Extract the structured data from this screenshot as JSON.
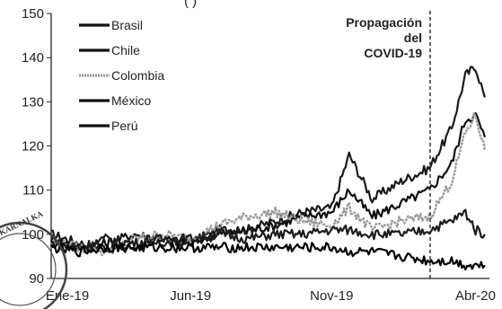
{
  "chart_data": {
    "type": "line",
    "title": "",
    "subtitle_fragment": "( )",
    "xlabel": "",
    "ylabel": "",
    "x_ticks": [
      "Ene-19",
      "Jun-19",
      "Nov-19",
      "Abr-20"
    ],
    "y_ticks": [
      90,
      100,
      110,
      120,
      130,
      140,
      150
    ],
    "ylim": [
      90,
      150
    ],
    "grid": false,
    "legend_position": "top-left",
    "annotation": {
      "lines": [
        "Propagación",
        "del",
        "COVID-19"
      ],
      "x": "2020-02-24",
      "style": "dashed"
    },
    "series": [
      {
        "name": "Brasil",
        "color": "#1a1a1a",
        "points": [
          [
            "2019-01-01",
            100
          ],
          [
            "2019-02-01",
            98
          ],
          [
            "2019-03-01",
            97
          ],
          [
            "2019-04-01",
            97
          ],
          [
            "2019-05-01",
            98
          ],
          [
            "2019-06-01",
            98
          ],
          [
            "2019-07-01",
            101
          ],
          [
            "2019-08-01",
            101
          ],
          [
            "2019-09-01",
            103
          ],
          [
            "2019-10-01",
            105
          ],
          [
            "2019-11-01",
            106
          ],
          [
            "2019-11-20",
            118
          ],
          [
            "2019-12-15",
            108
          ],
          [
            "2020-01-15",
            112
          ],
          [
            "2020-02-15",
            115
          ],
          [
            "2020-03-10",
            124
          ],
          [
            "2020-03-25",
            136
          ],
          [
            "2020-04-05",
            138
          ],
          [
            "2020-04-15",
            131
          ]
        ]
      },
      {
        "name": "Chile",
        "color": "#111111",
        "points": [
          [
            "2019-01-01",
            99
          ],
          [
            "2019-02-01",
            97
          ],
          [
            "2019-03-01",
            98
          ],
          [
            "2019-04-01",
            100
          ],
          [
            "2019-05-01",
            99
          ],
          [
            "2019-06-01",
            98
          ],
          [
            "2019-07-01",
            100
          ],
          [
            "2019-08-01",
            101
          ],
          [
            "2019-09-01",
            102
          ],
          [
            "2019-10-01",
            104
          ],
          [
            "2019-11-01",
            105
          ],
          [
            "2019-11-20",
            110
          ],
          [
            "2019-12-15",
            104
          ],
          [
            "2020-01-15",
            107
          ],
          [
            "2020-02-15",
            110
          ],
          [
            "2020-03-10",
            116
          ],
          [
            "2020-03-25",
            126
          ],
          [
            "2020-04-05",
            127
          ],
          [
            "2020-04-15",
            122
          ]
        ]
      },
      {
        "name": "Colombia",
        "color": "#9a9a9a",
        "points": [
          [
            "2019-01-01",
            98
          ],
          [
            "2019-02-01",
            97
          ],
          [
            "2019-03-01",
            96
          ],
          [
            "2019-04-01",
            99
          ],
          [
            "2019-05-01",
            100
          ],
          [
            "2019-06-01",
            99
          ],
          [
            "2019-07-01",
            102
          ],
          [
            "2019-08-01",
            104
          ],
          [
            "2019-09-01",
            105
          ],
          [
            "2019-10-01",
            103
          ],
          [
            "2019-11-01",
            102
          ],
          [
            "2019-11-20",
            106
          ],
          [
            "2019-12-15",
            101
          ],
          [
            "2020-01-15",
            103
          ],
          [
            "2020-02-15",
            104
          ],
          [
            "2020-03-10",
            112
          ],
          [
            "2020-03-25",
            123
          ],
          [
            "2020-04-05",
            127
          ],
          [
            "2020-04-15",
            119
          ]
        ]
      },
      {
        "name": "México",
        "color": "#1c1c1c",
        "points": [
          [
            "2019-01-01",
            98
          ],
          [
            "2019-02-01",
            97
          ],
          [
            "2019-03-01",
            99
          ],
          [
            "2019-04-01",
            98
          ],
          [
            "2019-05-01",
            99
          ],
          [
            "2019-06-01",
            99
          ],
          [
            "2019-07-01",
            100
          ],
          [
            "2019-08-01",
            99
          ],
          [
            "2019-09-01",
            100
          ],
          [
            "2019-10-01",
            100
          ],
          [
            "2019-11-01",
            101
          ],
          [
            "2019-11-20",
            101
          ],
          [
            "2019-12-15",
            100
          ],
          [
            "2020-01-15",
            100
          ],
          [
            "2020-02-15",
            101
          ],
          [
            "2020-03-10",
            103
          ],
          [
            "2020-03-25",
            105
          ],
          [
            "2020-04-05",
            101
          ],
          [
            "2020-04-15",
            100
          ]
        ]
      },
      {
        "name": "Perú",
        "color": "#000000",
        "points": [
          [
            "2019-01-01",
            97
          ],
          [
            "2019-02-01",
            96
          ],
          [
            "2019-03-01",
            97
          ],
          [
            "2019-04-01",
            97
          ],
          [
            "2019-05-01",
            97
          ],
          [
            "2019-06-01",
            97
          ],
          [
            "2019-07-01",
            97
          ],
          [
            "2019-08-01",
            97
          ],
          [
            "2019-09-01",
            97
          ],
          [
            "2019-10-01",
            97
          ],
          [
            "2019-11-01",
            97
          ],
          [
            "2019-11-20",
            96
          ],
          [
            "2019-12-15",
            96
          ],
          [
            "2020-01-15",
            95
          ],
          [
            "2020-02-15",
            94
          ],
          [
            "2020-03-10",
            94
          ],
          [
            "2020-03-25",
            93
          ],
          [
            "2020-04-05",
            93
          ],
          [
            "2020-04-15",
            93
          ]
        ]
      }
    ]
  },
  "stamp": {
    "text": "KARNALKA"
  }
}
